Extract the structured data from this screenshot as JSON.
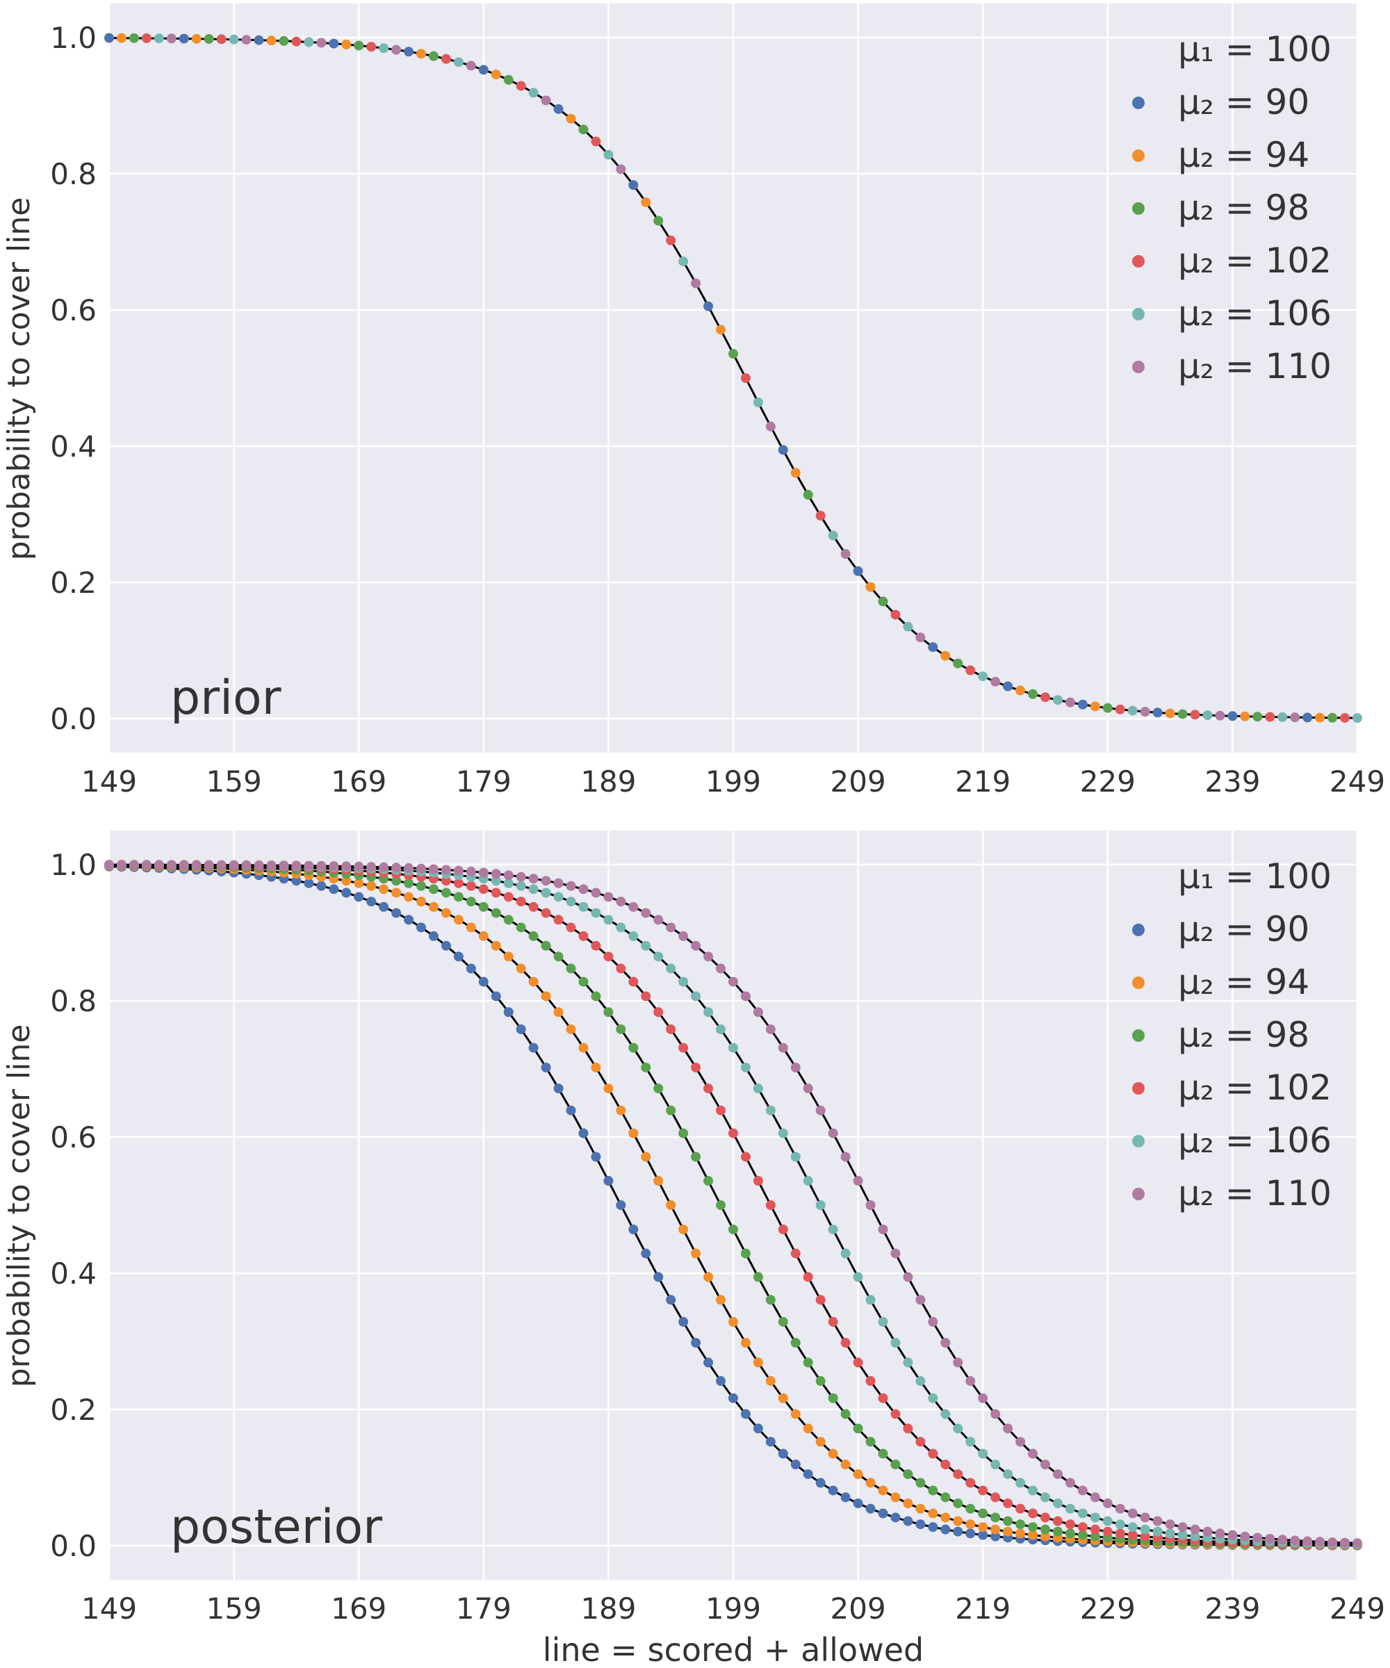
{
  "xlabel": "line = scored + allowed",
  "legend_title": "μ₁ = 100",
  "colors": {
    "background": "#eaeaf2",
    "grid": "#ffffff",
    "curve": "#000000",
    "series": [
      "#4c72b0",
      "#f28e2b",
      "#59a14f",
      "#e15759",
      "#76b7b2",
      "#b07aa1"
    ]
  },
  "chart_data": [
    {
      "type": "scatter",
      "panel_label": "prior",
      "ylabel": "probability to cover line",
      "xlim": [
        149,
        249
      ],
      "ylim": [
        -0.05,
        1.05
      ],
      "xticks": [
        149,
        159,
        169,
        179,
        189,
        199,
        209,
        219,
        229,
        239,
        249
      ],
      "yticks": [
        0.0,
        0.2,
        0.4,
        0.6,
        0.8,
        1.0
      ],
      "legend": {
        "position": "top-right",
        "title": "μ₁ = 100"
      },
      "model": {
        "form": "logistic",
        "center": 200,
        "scale": 7.0
      },
      "marker_pattern": "each x is one marker; colours cycle through series in legend order (interleaved)",
      "series": [
        {
          "name": "μ₂ = 90",
          "mu2": 90
        },
        {
          "name": "μ₂ = 94",
          "mu2": 94
        },
        {
          "name": "μ₂ = 98",
          "mu2": 98
        },
        {
          "name": "μ₂ = 102",
          "mu2": 102
        },
        {
          "name": "μ₂ = 106",
          "mu2": 106
        },
        {
          "name": "μ₂ = 110",
          "mu2": 110
        }
      ]
    },
    {
      "type": "scatter",
      "panel_label": "posterior",
      "ylabel": "probability to cover line",
      "xlim": [
        149,
        249
      ],
      "ylim": [
        -0.05,
        1.05
      ],
      "xticks": [
        149,
        159,
        169,
        179,
        189,
        199,
        209,
        219,
        229,
        239,
        249
      ],
      "yticks": [
        0.0,
        0.2,
        0.4,
        0.6,
        0.8,
        1.0
      ],
      "legend": {
        "position": "top-right",
        "title": "μ₁ = 100"
      },
      "model": {
        "form": "logistic",
        "scale": 7.0
      },
      "series": [
        {
          "name": "μ₂ = 90",
          "mu2": 90,
          "center": 190
        },
        {
          "name": "μ₂ = 94",
          "mu2": 94,
          "center": 194
        },
        {
          "name": "μ₂ = 98",
          "mu2": 98,
          "center": 198
        },
        {
          "name": "μ₂ = 102",
          "mu2": 102,
          "center": 202
        },
        {
          "name": "μ₂ = 106",
          "mu2": 106,
          "center": 206
        },
        {
          "name": "μ₂ = 110",
          "mu2": 110,
          "center": 210
        }
      ]
    }
  ]
}
